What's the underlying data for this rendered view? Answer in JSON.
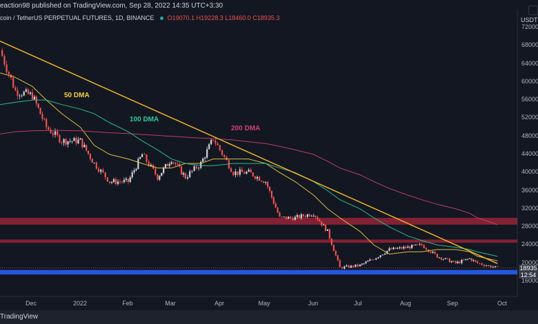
{
  "header": {
    "author": "eaction98 published on TradingView.com, Sep 28, 2022 14:35 UTC+3:30"
  },
  "symbol": {
    "name": "coin / TetherUS PERPETUAL FUTURES, 1D, BINANCE",
    "open": "O19070.1",
    "high": "H19228.3",
    "low": "L18460.0",
    "close": "C18935.3"
  },
  "currency": "USDT",
  "price_axis": [
    "72000",
    "68000",
    "64000",
    "60000",
    "56000",
    "52000",
    "48000",
    "44000",
    "40000",
    "36000",
    "32000",
    "28000",
    "24000",
    "20000",
    "16000"
  ],
  "time_axis": [
    "Dec",
    "2022",
    "Feb",
    "Mar",
    "Apr",
    "May",
    "Jun",
    "Jul",
    "Aug",
    "Sep",
    "Oct"
  ],
  "current_price": "18935",
  "countdown": "12:54",
  "ma_labels": {
    "dma50": "50 DMA",
    "dma100": "100 DMA",
    "dma200": "200 DMA"
  },
  "colors": {
    "background": "#131722",
    "dma50": "#f5d142",
    "dma100": "#2ecc9a",
    "dma200": "#d0426e",
    "trendline": "#f0b429",
    "resistance_zone": "#b2263a",
    "support_zone": "#2962ff",
    "candle_up": "#d1d4dc",
    "candle_down": "#ef5350"
  },
  "footer": {
    "brand": "TradingView"
  },
  "chart_data": {
    "type": "candlestick",
    "title": "",
    "xlabel": "",
    "ylabel": "",
    "ylim": [
      14000,
      74000
    ],
    "x": [
      "Nov 10",
      "Nov 20",
      "Dec 1",
      "Dec 10",
      "Dec 20",
      "Jan 1",
      "Jan 10",
      "Jan 20",
      "Feb 1",
      "Feb 10",
      "Feb 20",
      "Mar 1",
      "Mar 10",
      "Mar 20",
      "Mar 28",
      "Apr 10",
      "Apr 20",
      "May 1",
      "May 10",
      "May 20",
      "Jun 1",
      "Jun 10",
      "Jun 18",
      "Jul 1",
      "Jul 10",
      "Jul 20",
      "Aug 1",
      "Aug 10",
      "Aug 20",
      "Sep 1",
      "Sep 10",
      "Sep 15",
      "Sep 28"
    ],
    "series": [
      {
        "name": "close",
        "values": [
          67000,
          58000,
          57000,
          50000,
          47000,
          47000,
          42000,
          38000,
          38000,
          44000,
          39000,
          43000,
          39000,
          42000,
          47500,
          40000,
          40000,
          38000,
          30000,
          30000,
          31000,
          27000,
          19000,
          19500,
          21000,
          23000,
          23500,
          24000,
          21500,
          20000,
          21000,
          20000,
          18935
        ]
      },
      {
        "name": "50 DMA",
        "values": [
          62000,
          61000,
          59000,
          56000,
          53000,
          50000,
          46000,
          44000,
          43000,
          42000,
          41000,
          41000,
          42000,
          42000,
          43000,
          43000,
          43000,
          42000,
          40000,
          38000,
          35000,
          32000,
          30000,
          27000,
          24000,
          22000,
          22500,
          22500,
          23000,
          23000,
          22500,
          21500,
          20500
        ]
      },
      {
        "name": "100 DMA",
        "values": [
          55000,
          55500,
          56000,
          56000,
          55000,
          54000,
          53000,
          51000,
          49000,
          47000,
          45000,
          43000,
          42000,
          41500,
          41500,
          42000,
          42000,
          42000,
          41000,
          40000,
          38000,
          36000,
          34000,
          32000,
          30000,
          28000,
          26000,
          25000,
          24000,
          23500,
          23000,
          22500,
          21500
        ]
      },
      {
        "name": "200 DMA",
        "values": [
          48500,
          49000,
          49200,
          49300,
          49300,
          49200,
          49000,
          48800,
          48600,
          48400,
          48200,
          48000,
          47800,
          47600,
          47500,
          47200,
          46800,
          46400,
          45800,
          45000,
          44000,
          42500,
          41000,
          39500,
          38000,
          36500,
          35000,
          34000,
          33000,
          32000,
          31000,
          30000,
          28500
        ]
      }
    ],
    "trendline": {
      "from": {
        "x": "Nov 10",
        "y": 69000
      },
      "to": {
        "x": "Sep 28",
        "y": 19900
      }
    },
    "zones": [
      {
        "name": "resistance",
        "y": [
          28500,
          30000
        ]
      },
      {
        "name": "resistance",
        "y": [
          24500,
          25200
        ]
      },
      {
        "name": "support",
        "y": [
          17500,
          18500
        ]
      }
    ]
  }
}
